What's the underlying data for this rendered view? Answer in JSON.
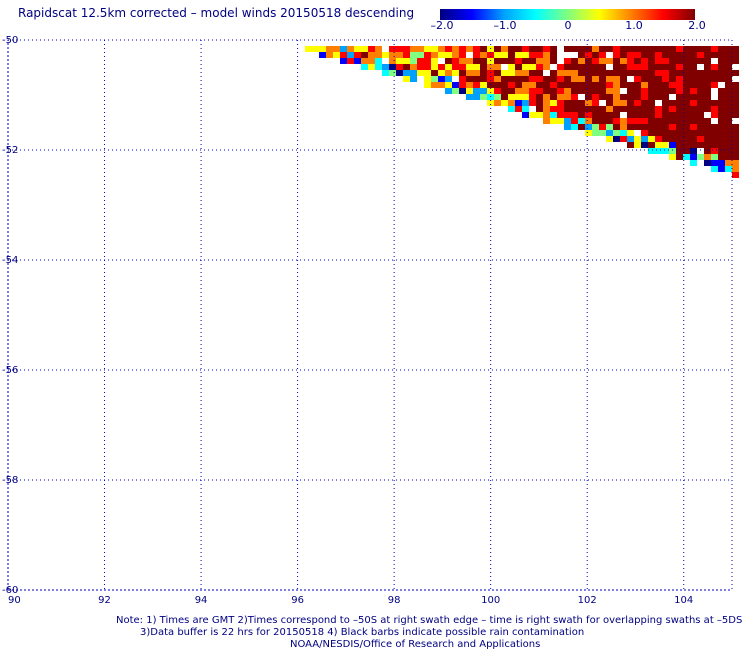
{
  "title": "Rapidscat 12.5km corrected – model winds 20150518 descending",
  "colorbar": {
    "stops": [
      "#000080",
      "#0000ff",
      "#00a0ff",
      "#00ffff",
      "#80ff80",
      "#ffff00",
      "#ff8000",
      "#ff0000",
      "#800000"
    ],
    "ticks": [
      {
        "label": "–2.0",
        "value": -2.0
      },
      {
        "label": "–1.0",
        "value": -1.0
      },
      {
        "label": "0",
        "value": 0
      },
      {
        "label": "1.0",
        "value": 1.0
      },
      {
        "label": "2.0",
        "value": 2.0
      }
    ],
    "range": [
      -2.0,
      2.0
    ]
  },
  "axes": {
    "lon_range": [
      90,
      105
    ],
    "lat_range": [
      -60,
      -50
    ],
    "x_ticks": [
      "90",
      "92",
      "94",
      "96",
      "98",
      "100",
      "102",
      "104"
    ],
    "y_ticks": [
      "-50",
      "-52",
      "-54",
      "-56",
      "-58",
      "-60"
    ],
    "grid": true,
    "grid_color": "#0000c0"
  },
  "notes": [
    "Note: 1) Times are GMT 2)Times correspond to –50S at right swath edge – time is right swath for overlapping swaths at –5DS",
    "3)Data buffer is 22 hrs for 20150518 4) Black barbs indicate possible rain contamination",
    "NOAA/NESDIS/Office of Research and Applications"
  ]
}
